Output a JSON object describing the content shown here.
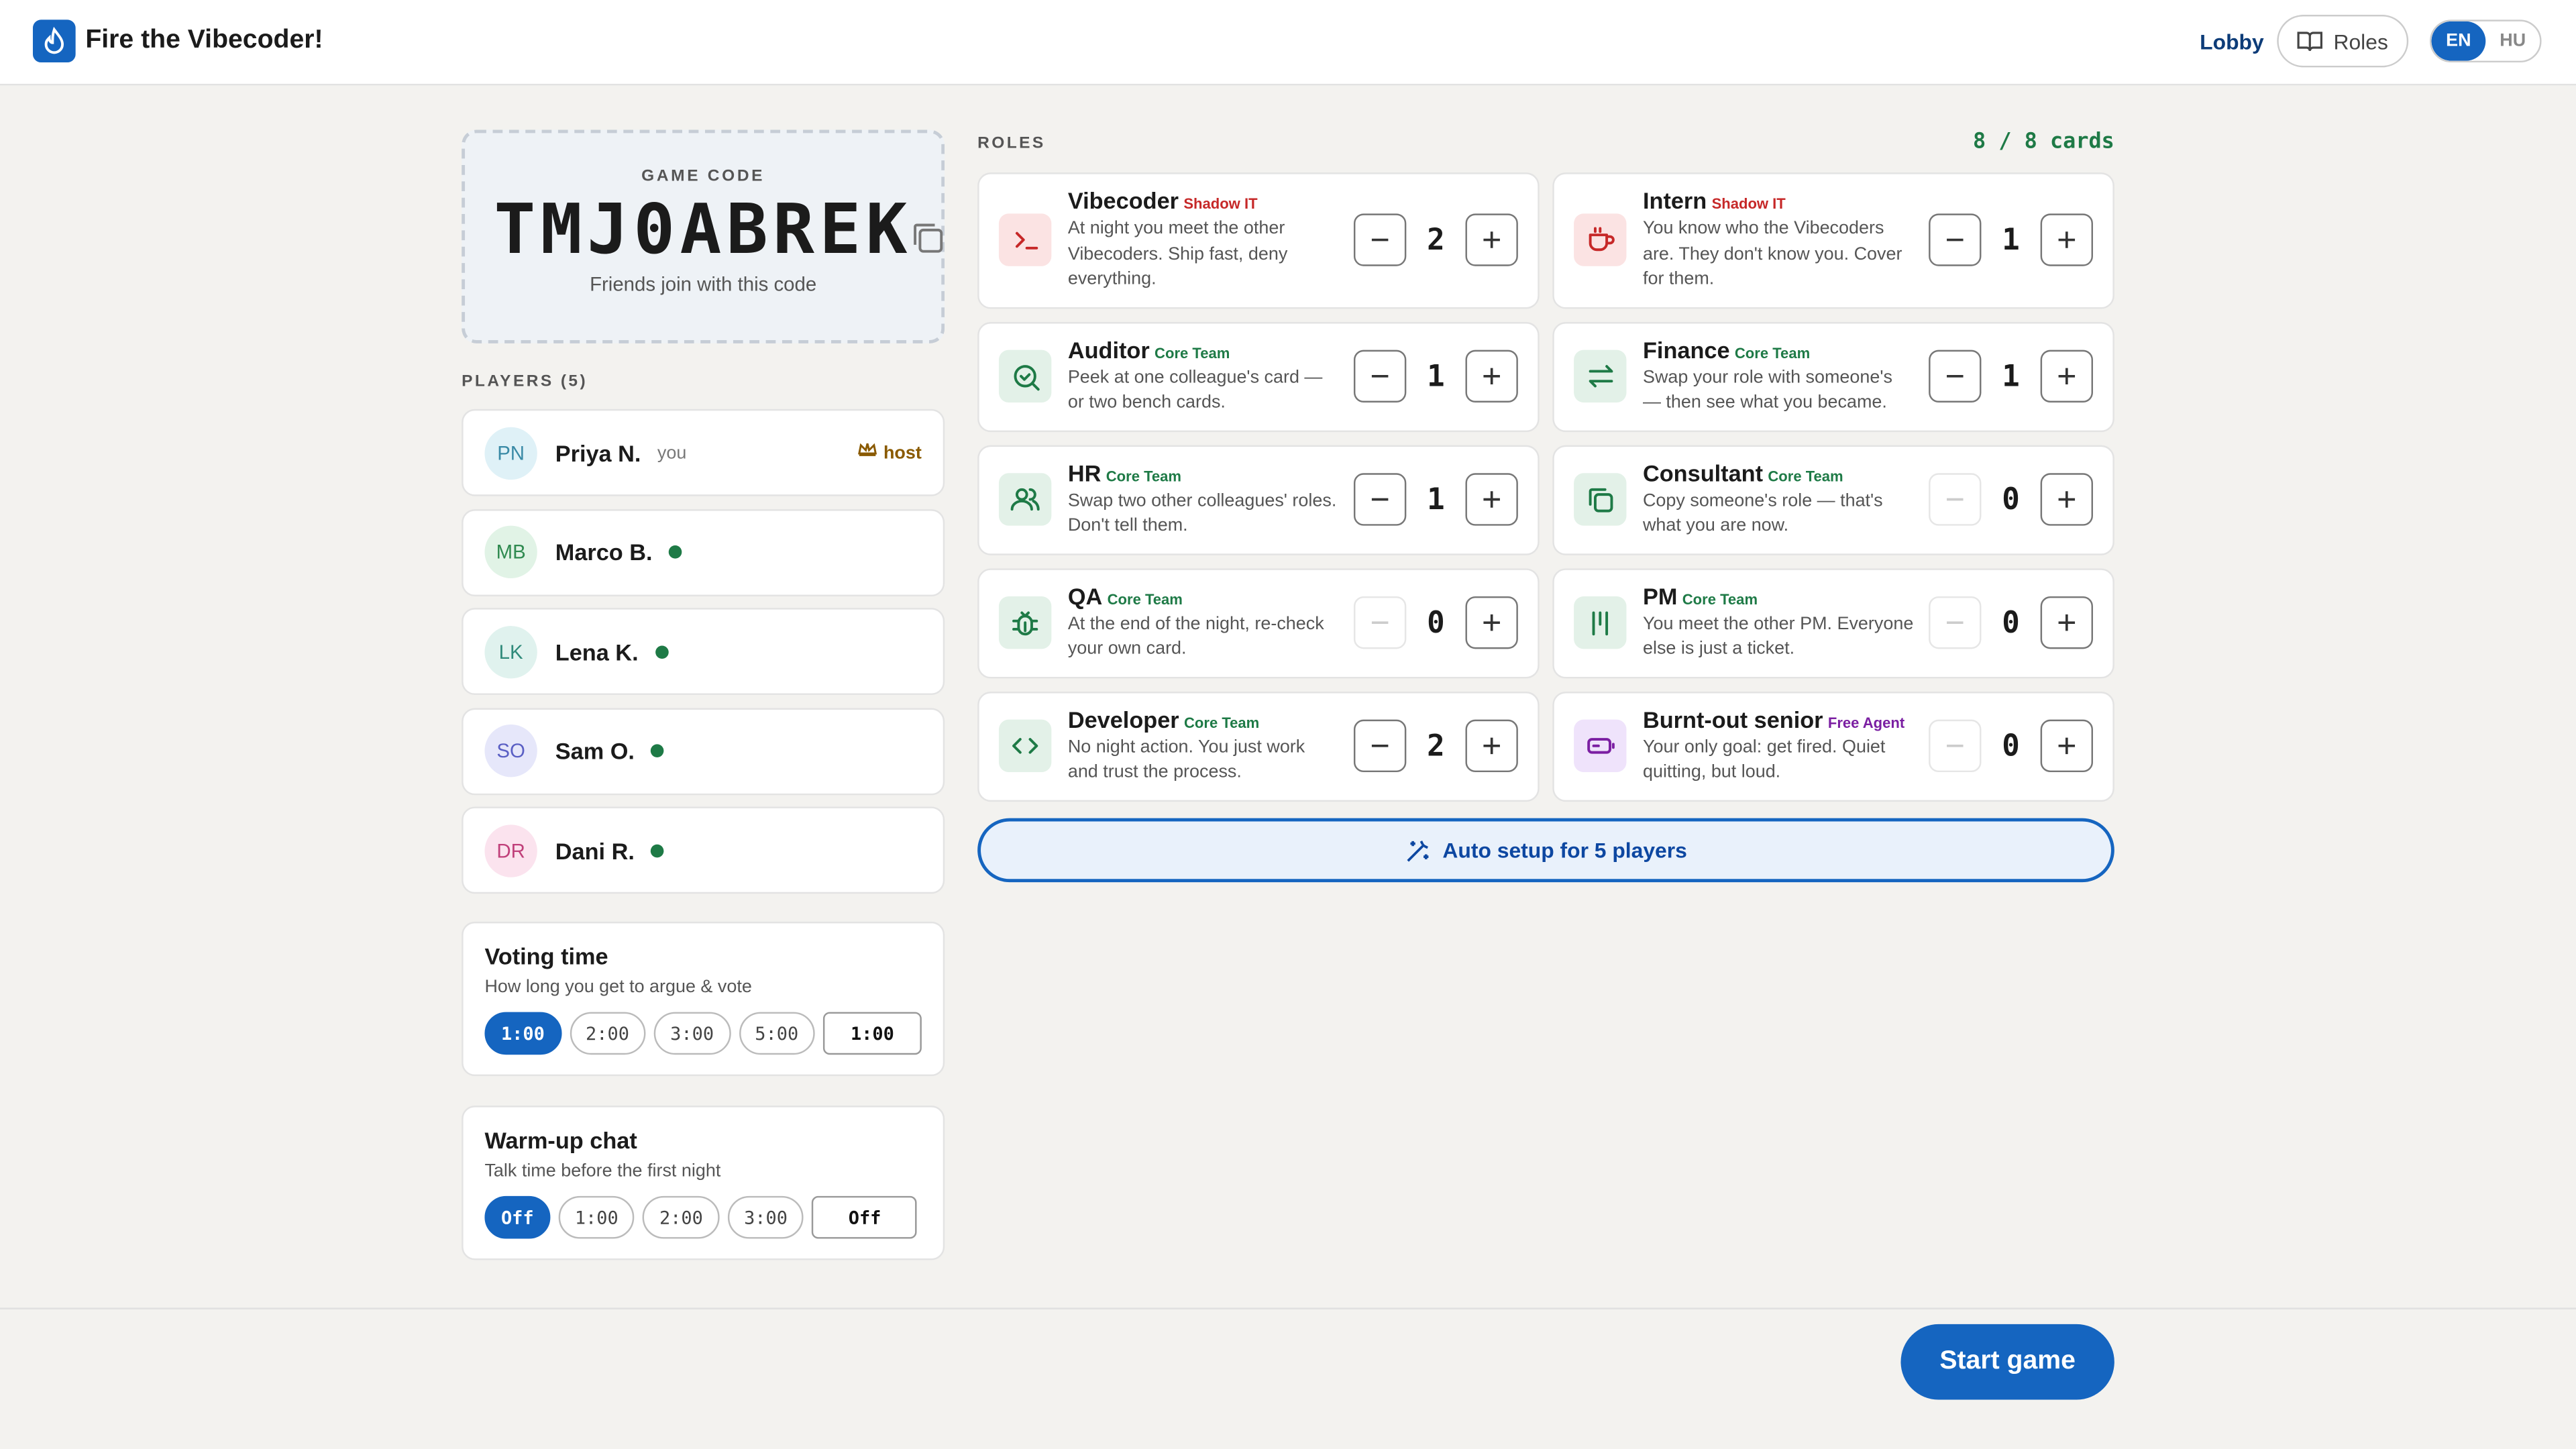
{
  "header": {
    "app_title": "Fire the Vibecoder!",
    "nav": {
      "lobby": "Lobby",
      "roles": "Roles"
    },
    "languages": [
      "EN",
      "HU"
    ]
  },
  "game_code": {
    "label": "GAME CODE",
    "code": "TMJ0ABREK",
    "hint": "Friends join with this code"
  },
  "players": {
    "heading": "PLAYERS (5)",
    "list": [
      {
        "initials": "PN",
        "name": "Priya N.",
        "tag": "you",
        "badge": "host"
      },
      {
        "initials": "MB",
        "name": "Marco B."
      },
      {
        "initials": "LK",
        "name": "Lena K."
      },
      {
        "initials": "SO",
        "name": "Sam O."
      },
      {
        "initials": "DR",
        "name": "Dani R."
      }
    ]
  },
  "settings": [
    {
      "title": "Voting time",
      "description": "How long you get to argue & vote",
      "options": [
        "1:00",
        "2:00",
        "3:00",
        "5:00"
      ],
      "custom": "1:00"
    },
    {
      "title": "Warm-up chat",
      "description": "Talk time before the first night",
      "options": [
        "Off",
        "1:00",
        "2:00",
        "3:00"
      ],
      "custom": "Off"
    }
  ],
  "roles": {
    "heading": "ROLES",
    "count": "8 / 8 cards",
    "items": [
      {
        "name": "Vibecoder",
        "team": "Shadow IT",
        "description": "At night you meet the other Vibecoders. Ship fast, deny everything.",
        "count": 2
      },
      {
        "name": "Intern",
        "team": "Shadow IT",
        "description": "You know who the Vibecoders are. They don't know you. Cover for them.",
        "count": 1
      },
      {
        "name": "Auditor",
        "team": "Core Team",
        "description": "Peek at one colleague's card — or two bench cards.",
        "count": 1
      },
      {
        "name": "Finance",
        "team": "Core Team",
        "description": "Swap your role with someone's — then see what you became.",
        "count": 1
      },
      {
        "name": "HR",
        "team": "Core Team",
        "description": "Swap two other colleagues' roles. Don't tell them.",
        "count": 1
      },
      {
        "name": "Consultant",
        "team": "Core Team",
        "description": "Copy someone's role — that's what you are now.",
        "count": 0
      },
      {
        "name": "QA",
        "team": "Core Team",
        "description": "At the end of the night, re-check your own card.",
        "count": 0
      },
      {
        "name": "PM",
        "team": "Core Team",
        "description": "You meet the other PM. Everyone else is just a ticket.",
        "count": 0
      },
      {
        "name": "Developer",
        "team": "Core Team",
        "description": "No night action. You just work and trust the process.",
        "count": 2
      },
      {
        "name": "Burnt-out senior",
        "team": "Free Agent",
        "description": "Your only goal: get fired. Quiet quitting, but loud.",
        "count": 0
      }
    ],
    "auto_setup": "Auto setup for 5 players"
  },
  "footer": {
    "start": "Start game"
  }
}
